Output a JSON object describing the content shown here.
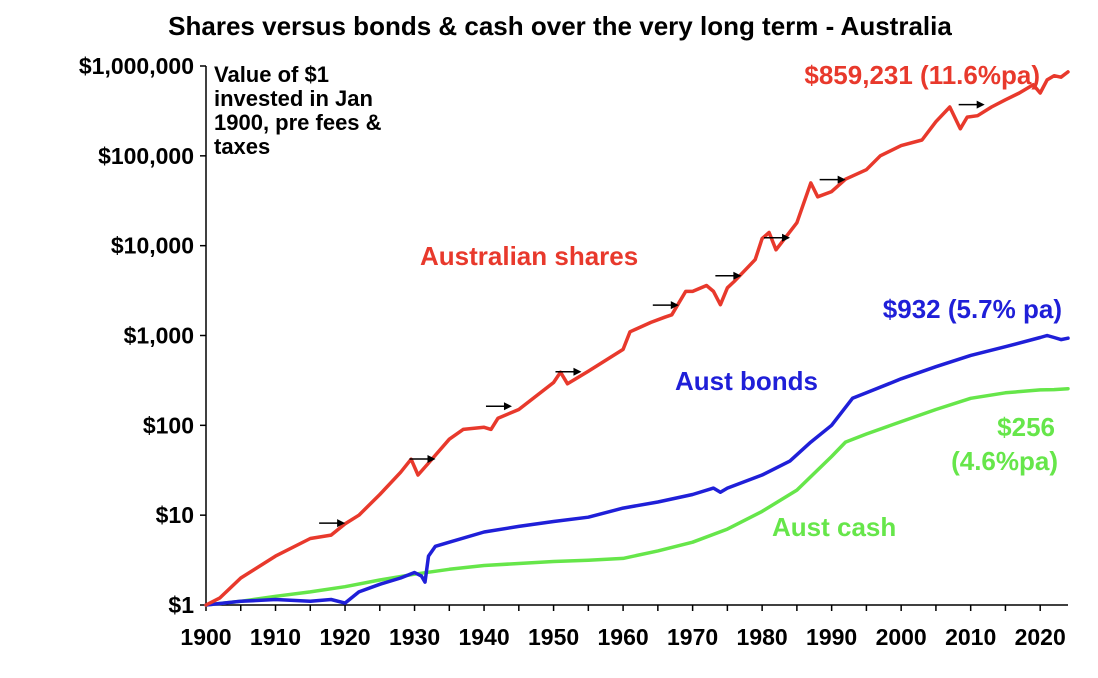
{
  "chart_data": {
    "type": "line",
    "title": "Shares versus bonds & cash over the very long term - Australia",
    "annotation_lines": [
      "Value of $1",
      "invested in Jan",
      "1900, pre fees &",
      "taxes"
    ],
    "y_scale": "log",
    "ylim": [
      1,
      1000000
    ],
    "xlim": [
      1900,
      2024
    ],
    "grid": false,
    "y_ticks": [
      {
        "value": 1,
        "label": "$1"
      },
      {
        "value": 10,
        "label": "$10"
      },
      {
        "value": 100,
        "label": "$100"
      },
      {
        "value": 1000,
        "label": "$1,000"
      },
      {
        "value": 10000,
        "label": "$10,000"
      },
      {
        "value": 100000,
        "label": "$100,000"
      },
      {
        "value": 1000000,
        "label": "$1,000,000"
      }
    ],
    "x_ticks": [
      {
        "value": 1900,
        "label": "1900"
      },
      {
        "value": 1910,
        "label": "1910"
      },
      {
        "value": 1920,
        "label": "1920"
      },
      {
        "value": 1930,
        "label": "1930"
      },
      {
        "value": 1940,
        "label": "1940"
      },
      {
        "value": 1950,
        "label": "1950"
      },
      {
        "value": 1960,
        "label": "1960"
      },
      {
        "value": 1970,
        "label": "1970"
      },
      {
        "value": 1980,
        "label": "1980"
      },
      {
        "value": 1990,
        "label": "1990"
      },
      {
        "value": 2000,
        "label": "2000"
      },
      {
        "value": 2010,
        "label": "2010"
      },
      {
        "value": 2020,
        "label": "2020"
      }
    ],
    "series": [
      {
        "name": "Australian shares",
        "color": "#e8392c",
        "end_label": "$859,231 (11.6%pa)",
        "points": [
          [
            1900,
            1
          ],
          [
            1902,
            1.2
          ],
          [
            1905,
            2
          ],
          [
            1910,
            3.5
          ],
          [
            1915,
            5.5
          ],
          [
            1918,
            6
          ],
          [
            1920,
            8
          ],
          [
            1922,
            10
          ],
          [
            1925,
            17
          ],
          [
            1928,
            30
          ],
          [
            1929.5,
            42
          ],
          [
            1930.5,
            28
          ],
          [
            1932,
            38
          ],
          [
            1935,
            70
          ],
          [
            1937,
            90
          ],
          [
            1940,
            95
          ],
          [
            1941,
            90
          ],
          [
            1942,
            120
          ],
          [
            1945,
            150
          ],
          [
            1950,
            300
          ],
          [
            1951,
            390
          ],
          [
            1952,
            290
          ],
          [
            1955,
            400
          ],
          [
            1960,
            700
          ],
          [
            1961,
            1100
          ],
          [
            1964,
            1400
          ],
          [
            1966,
            1600
          ],
          [
            1967,
            1700
          ],
          [
            1969,
            3100
          ],
          [
            1970,
            3100
          ],
          [
            1972,
            3600
          ],
          [
            1973,
            3100
          ],
          [
            1974,
            2200
          ],
          [
            1975,
            3400
          ],
          [
            1976,
            4000
          ],
          [
            1979,
            7000
          ],
          [
            1980,
            12000
          ],
          [
            1981,
            14000
          ],
          [
            1982,
            9000
          ],
          [
            1985,
            18000
          ],
          [
            1987,
            50000
          ],
          [
            1988,
            35000
          ],
          [
            1990,
            40000
          ],
          [
            1992,
            55000
          ],
          [
            1995,
            70000
          ],
          [
            1997,
            100000
          ],
          [
            2000,
            130000
          ],
          [
            2003,
            150000
          ],
          [
            2005,
            240000
          ],
          [
            2007,
            350000
          ],
          [
            2008.5,
            200000
          ],
          [
            2009.5,
            270000
          ],
          [
            2011,
            280000
          ],
          [
            2013,
            350000
          ],
          [
            2015,
            420000
          ],
          [
            2017,
            500000
          ],
          [
            2019,
            620000
          ],
          [
            2020,
            500000
          ],
          [
            2021,
            700000
          ],
          [
            2022,
            780000
          ],
          [
            2023,
            750000
          ],
          [
            2024,
            859231
          ]
        ]
      },
      {
        "name": "Aust bonds",
        "color": "#1f1fd8",
        "end_label": "$932 (5.7% pa)",
        "points": [
          [
            1900,
            1
          ],
          [
            1905,
            1.1
          ],
          [
            1910,
            1.15
          ],
          [
            1915,
            1.1
          ],
          [
            1918,
            1.15
          ],
          [
            1920,
            1.05
          ],
          [
            1922,
            1.4
          ],
          [
            1925,
            1.7
          ],
          [
            1928,
            2
          ],
          [
            1930,
            2.3
          ],
          [
            1931,
            2.1
          ],
          [
            1931.5,
            1.8
          ],
          [
            1932,
            3.5
          ],
          [
            1933,
            4.5
          ],
          [
            1935,
            5
          ],
          [
            1940,
            6.5
          ],
          [
            1945,
            7.5
          ],
          [
            1950,
            8.5
          ],
          [
            1955,
            9.5
          ],
          [
            1960,
            12
          ],
          [
            1965,
            14
          ],
          [
            1970,
            17
          ],
          [
            1973,
            20
          ],
          [
            1974,
            18
          ],
          [
            1975,
            20
          ],
          [
            1980,
            28
          ],
          [
            1984,
            40
          ],
          [
            1987,
            65
          ],
          [
            1990,
            100
          ],
          [
            1993,
            200
          ],
          [
            1995,
            230
          ],
          [
            2000,
            330
          ],
          [
            2005,
            450
          ],
          [
            2010,
            600
          ],
          [
            2015,
            750
          ],
          [
            2020,
            950
          ],
          [
            2021,
            1000
          ],
          [
            2022,
            950
          ],
          [
            2023,
            900
          ],
          [
            2024,
            932
          ]
        ]
      },
      {
        "name": "Aust cash",
        "color": "#66e64a",
        "end_label_lines": [
          "$256",
          "(4.6%pa)"
        ],
        "points": [
          [
            1900,
            1
          ],
          [
            1905,
            1.1
          ],
          [
            1910,
            1.25
          ],
          [
            1915,
            1.4
          ],
          [
            1920,
            1.6
          ],
          [
            1925,
            1.9
          ],
          [
            1930,
            2.2
          ],
          [
            1935,
            2.5
          ],
          [
            1940,
            2.75
          ],
          [
            1945,
            2.9
          ],
          [
            1950,
            3.05
          ],
          [
            1955,
            3.15
          ],
          [
            1960,
            3.3
          ],
          [
            1965,
            4
          ],
          [
            1970,
            5
          ],
          [
            1975,
            7
          ],
          [
            1980,
            11
          ],
          [
            1985,
            19
          ],
          [
            1990,
            45
          ],
          [
            1992,
            65
          ],
          [
            1995,
            80
          ],
          [
            2000,
            110
          ],
          [
            2005,
            150
          ],
          [
            2010,
            200
          ],
          [
            2015,
            230
          ],
          [
            2020,
            248
          ],
          [
            2022,
            250
          ],
          [
            2024,
            256
          ]
        ]
      }
    ],
    "crash_arrow_years": [
      1918,
      1931,
      1942,
      1952,
      1966,
      1975,
      1982,
      1990,
      2010
    ],
    "labels": {
      "shares": "Australian shares",
      "bonds": "Aust bonds",
      "cash": "Aust cash"
    }
  }
}
